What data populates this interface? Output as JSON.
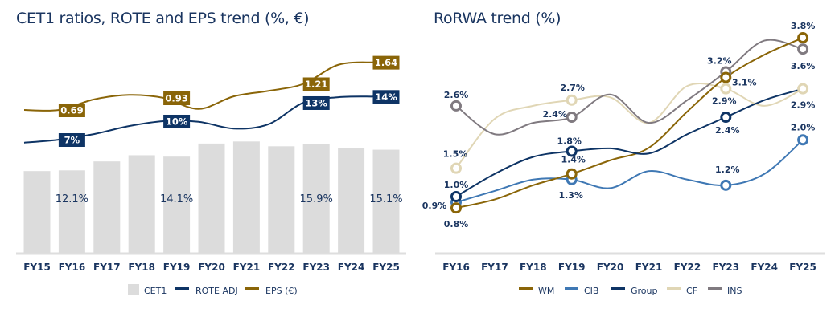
{
  "chart_data": [
    {
      "type": "bar+line",
      "title": "CET1 ratios, ROTE and EPS trend (%, €)",
      "categories": [
        "FY15",
        "FY16",
        "FY17",
        "FY18",
        "FY19",
        "FY20",
        "FY21",
        "FY22",
        "FY23",
        "FY24",
        "FY25"
      ],
      "series": [
        {
          "name": "CET1",
          "type": "bar",
          "color": "#dcdcdc",
          "values": [
            12.0,
            12.1,
            13.4,
            14.3,
            14.1,
            16.0,
            16.3,
            15.6,
            15.9,
            15.3,
            15.1
          ]
        },
        {
          "name": "ROTE ADJ",
          "type": "line",
          "color": "#0e3465",
          "values": [
            6.5,
            7,
            7.9,
            9.2,
            10,
            9.9,
            8.8,
            9.5,
            13,
            13.9,
            14
          ]
        },
        {
          "name": "EPS (€)",
          "type": "line",
          "color": "#8a6508",
          "values": [
            0.69,
            0.69,
            0.9,
            0.99,
            0.93,
            0.71,
            0.96,
            1.07,
            1.21,
            1.59,
            1.64
          ]
        }
      ],
      "data_labels": [
        {
          "series": "CET1",
          "index": 1,
          "text": "12.1%"
        },
        {
          "series": "CET1",
          "index": 4,
          "text": "14.1%"
        },
        {
          "series": "CET1",
          "index": 8,
          "text": "15.9%"
        },
        {
          "series": "CET1",
          "index": 10,
          "text": "15.1%"
        },
        {
          "series": "ROTE ADJ",
          "index": 1,
          "text": "7%"
        },
        {
          "series": "ROTE ADJ",
          "index": 4,
          "text": "10%"
        },
        {
          "series": "ROTE ADJ",
          "index": 8,
          "text": "13%"
        },
        {
          "series": "ROTE ADJ",
          "index": 10,
          "text": "14%"
        },
        {
          "series": "EPS (€)",
          "index": 1,
          "text": "0.69"
        },
        {
          "series": "EPS (€)",
          "index": 4,
          "text": "0.93"
        },
        {
          "series": "EPS (€)",
          "index": 8,
          "text": "1.21"
        },
        {
          "series": "EPS (€)",
          "index": 10,
          "text": "1.64"
        }
      ],
      "legend": "bottom",
      "grid": false
    },
    {
      "type": "line",
      "title": "RoRWA trend (%)",
      "categories": [
        "FY16",
        "FY17",
        "FY18",
        "FY19",
        "FY20",
        "FY21",
        "FY22",
        "FY23",
        "FY24",
        "FY25"
      ],
      "series": [
        {
          "name": "WM",
          "color": "#8a6508",
          "values": [
            0.8,
            0.95,
            1.2,
            1.4,
            1.64,
            1.86,
            2.5,
            3.1,
            3.5,
            3.8
          ],
          "markers": [
            0,
            3,
            7,
            9
          ]
        },
        {
          "name": "CIB",
          "color": "#3f78b4",
          "values": [
            0.9,
            1.1,
            1.3,
            1.3,
            1.15,
            1.45,
            1.3,
            1.2,
            1.4,
            2.0
          ],
          "markers": [
            0,
            3,
            7,
            9
          ]
        },
        {
          "name": "Group",
          "color": "#0e3465",
          "values": [
            1.0,
            1.4,
            1.7,
            1.8,
            1.85,
            1.76,
            2.1,
            2.4,
            2.7,
            2.9
          ],
          "markers": [
            0,
            3,
            7
          ]
        },
        {
          "name": "CF",
          "color": "#e0d6b5",
          "values": [
            1.5,
            2.37,
            2.6,
            2.7,
            2.75,
            2.3,
            2.95,
            2.9,
            2.6,
            2.9
          ],
          "markers": [
            0,
            3,
            7,
            9
          ]
        },
        {
          "name": "INS",
          "color": "#807a80",
          "values": [
            2.6,
            2.1,
            2.3,
            2.4,
            2.8,
            2.3,
            2.7,
            3.2,
            3.75,
            3.6
          ],
          "markers": [
            0,
            3,
            7,
            9
          ]
        }
      ],
      "data_labels": [
        {
          "series": "INS",
          "index": 0,
          "text": "2.6%"
        },
        {
          "series": "CF",
          "index": 0,
          "text": "1.5%"
        },
        {
          "series": "Group",
          "index": 0,
          "text": "1.0%"
        },
        {
          "series": "CIB",
          "index": 0,
          "text": "0.9%"
        },
        {
          "series": "WM",
          "index": 0,
          "text": "0.8%"
        },
        {
          "series": "CF",
          "index": 3,
          "text": "2.7%"
        },
        {
          "series": "INS",
          "index": 3,
          "text": "2.4%"
        },
        {
          "series": "Group",
          "index": 3,
          "text": "1.8%"
        },
        {
          "series": "WM",
          "index": 3,
          "text": "1.4%"
        },
        {
          "series": "CIB",
          "index": 3,
          "text": "1.3%"
        },
        {
          "series": "INS",
          "index": 7,
          "text": "3.2%"
        },
        {
          "series": "WM",
          "index": 7,
          "text": "3.1%"
        },
        {
          "series": "CF",
          "index": 7,
          "text": "2.9%"
        },
        {
          "series": "Group",
          "index": 7,
          "text": "2.4%"
        },
        {
          "series": "CIB",
          "index": 7,
          "text": "1.2%"
        },
        {
          "series": "WM",
          "index": 9,
          "text": "3.8%"
        },
        {
          "series": "INS",
          "index": 9,
          "text": "3.6%"
        },
        {
          "series": "CF",
          "index": 9,
          "text": "2.9%"
        },
        {
          "series": "CIB",
          "index": 9,
          "text": "2.0%"
        }
      ],
      "legend": "bottom",
      "grid": false
    }
  ]
}
